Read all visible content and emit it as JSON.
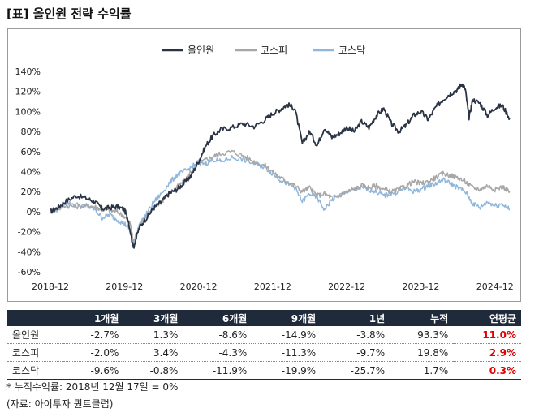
{
  "title": "[표] 올인원 전략 수익률",
  "chart_data": {
    "type": "line",
    "ylim": [
      -60,
      140
    ],
    "yticks": [
      "140%",
      "120%",
      "100%",
      "80%",
      "60%",
      "40%",
      "20%",
      "0%",
      "-20%",
      "-40%",
      "-60%"
    ],
    "xticks": [
      "2018-12",
      "2019-12",
      "2020-12",
      "2021-12",
      "2022-12",
      "2023-12",
      "2024-12"
    ],
    "xlim": [
      0,
      6.2
    ],
    "legend_position": "top-center",
    "series": [
      {
        "name": "올인원",
        "color": "#2b3444",
        "points": [
          [
            0,
            0
          ],
          [
            0.1,
            4
          ],
          [
            0.2,
            10
          ],
          [
            0.35,
            16
          ],
          [
            0.5,
            13
          ],
          [
            0.6,
            10
          ],
          [
            0.7,
            3
          ],
          [
            0.8,
            4
          ],
          [
            0.9,
            5
          ],
          [
            1.0,
            2
          ],
          [
            1.05,
            -8
          ],
          [
            1.12,
            -36
          ],
          [
            1.2,
            -16
          ],
          [
            1.3,
            -6
          ],
          [
            1.4,
            4
          ],
          [
            1.5,
            10
          ],
          [
            1.6,
            18
          ],
          [
            1.7,
            22
          ],
          [
            1.8,
            28
          ],
          [
            1.9,
            36
          ],
          [
            2.0,
            50
          ],
          [
            2.1,
            66
          ],
          [
            2.2,
            76
          ],
          [
            2.3,
            82
          ],
          [
            2.45,
            84
          ],
          [
            2.6,
            88
          ],
          [
            2.75,
            85
          ],
          [
            2.9,
            92
          ],
          [
            3.0,
            98
          ],
          [
            3.1,
            102
          ],
          [
            3.2,
            107
          ],
          [
            3.3,
            103
          ],
          [
            3.4,
            68
          ],
          [
            3.5,
            80
          ],
          [
            3.6,
            66
          ],
          [
            3.7,
            84
          ],
          [
            3.8,
            74
          ],
          [
            3.9,
            78
          ],
          [
            4.0,
            84
          ],
          [
            4.1,
            80
          ],
          [
            4.2,
            90
          ],
          [
            4.3,
            84
          ],
          [
            4.4,
            96
          ],
          [
            4.5,
            103
          ],
          [
            4.6,
            88
          ],
          [
            4.7,
            80
          ],
          [
            4.8,
            86
          ],
          [
            4.9,
            96
          ],
          [
            5.0,
            100
          ],
          [
            5.1,
            92
          ],
          [
            5.2,
            104
          ],
          [
            5.3,
            112
          ],
          [
            5.4,
            118
          ],
          [
            5.5,
            122
          ],
          [
            5.55,
            128
          ],
          [
            5.6,
            122
          ],
          [
            5.65,
            94
          ],
          [
            5.7,
            112
          ],
          [
            5.8,
            108
          ],
          [
            5.9,
            96
          ],
          [
            6.0,
            104
          ],
          [
            6.1,
            106
          ],
          [
            6.2,
            93
          ]
        ]
      },
      {
        "name": "코스피",
        "color": "#a7a7a7",
        "points": [
          [
            0,
            0
          ],
          [
            0.1,
            3
          ],
          [
            0.2,
            6
          ],
          [
            0.35,
            5
          ],
          [
            0.5,
            6
          ],
          [
            0.6,
            5
          ],
          [
            0.7,
            2
          ],
          [
            0.8,
            1
          ],
          [
            0.9,
            0
          ],
          [
            1.0,
            -5
          ],
          [
            1.08,
            -12
          ],
          [
            1.12,
            -30
          ],
          [
            1.2,
            -14
          ],
          [
            1.3,
            -4
          ],
          [
            1.4,
            4
          ],
          [
            1.5,
            10
          ],
          [
            1.6,
            18
          ],
          [
            1.7,
            24
          ],
          [
            1.8,
            30
          ],
          [
            1.9,
            40
          ],
          [
            2.0,
            48
          ],
          [
            2.1,
            52
          ],
          [
            2.2,
            55
          ],
          [
            2.3,
            58
          ],
          [
            2.45,
            60
          ],
          [
            2.6,
            56
          ],
          [
            2.75,
            50
          ],
          [
            2.9,
            46
          ],
          [
            3.0,
            40
          ],
          [
            3.1,
            34
          ],
          [
            3.2,
            30
          ],
          [
            3.3,
            26
          ],
          [
            3.4,
            20
          ],
          [
            3.5,
            24
          ],
          [
            3.6,
            16
          ],
          [
            3.7,
            18
          ],
          [
            3.8,
            14
          ],
          [
            3.9,
            16
          ],
          [
            4.0,
            20
          ],
          [
            4.1,
            22
          ],
          [
            4.2,
            26
          ],
          [
            4.3,
            24
          ],
          [
            4.4,
            26
          ],
          [
            4.5,
            22
          ],
          [
            4.6,
            20
          ],
          [
            4.7,
            22
          ],
          [
            4.8,
            26
          ],
          [
            4.9,
            30
          ],
          [
            5.0,
            28
          ],
          [
            5.1,
            30
          ],
          [
            5.2,
            34
          ],
          [
            5.3,
            38
          ],
          [
            5.4,
            36
          ],
          [
            5.5,
            34
          ],
          [
            5.6,
            30
          ],
          [
            5.7,
            24
          ],
          [
            5.8,
            22
          ],
          [
            5.9,
            26
          ],
          [
            6.0,
            22
          ],
          [
            6.1,
            25
          ],
          [
            6.2,
            20
          ]
        ]
      },
      {
        "name": "코스닥",
        "color": "#8fb7dc",
        "points": [
          [
            0,
            0
          ],
          [
            0.1,
            2
          ],
          [
            0.2,
            9
          ],
          [
            0.35,
            7
          ],
          [
            0.5,
            5
          ],
          [
            0.6,
            2
          ],
          [
            0.7,
            -6
          ],
          [
            0.8,
            -3
          ],
          [
            0.9,
            -8
          ],
          [
            1.0,
            -12
          ],
          [
            1.08,
            -18
          ],
          [
            1.12,
            -33
          ],
          [
            1.2,
            -14
          ],
          [
            1.3,
            -2
          ],
          [
            1.4,
            10
          ],
          [
            1.5,
            18
          ],
          [
            1.6,
            28
          ],
          [
            1.7,
            36
          ],
          [
            1.8,
            40
          ],
          [
            1.9,
            44
          ],
          [
            2.0,
            50
          ],
          [
            2.1,
            48
          ],
          [
            2.2,
            52
          ],
          [
            2.3,
            50
          ],
          [
            2.45,
            54
          ],
          [
            2.6,
            52
          ],
          [
            2.75,
            48
          ],
          [
            2.9,
            44
          ],
          [
            3.0,
            38
          ],
          [
            3.1,
            32
          ],
          [
            3.2,
            28
          ],
          [
            3.3,
            24
          ],
          [
            3.4,
            10
          ],
          [
            3.5,
            18
          ],
          [
            3.6,
            14
          ],
          [
            3.7,
            2
          ],
          [
            3.8,
            12
          ],
          [
            3.9,
            16
          ],
          [
            4.0,
            20
          ],
          [
            4.1,
            22
          ],
          [
            4.2,
            24
          ],
          [
            4.3,
            22
          ],
          [
            4.4,
            20
          ],
          [
            4.5,
            16
          ],
          [
            4.6,
            18
          ],
          [
            4.7,
            20
          ],
          [
            4.8,
            24
          ],
          [
            4.9,
            20
          ],
          [
            5.0,
            22
          ],
          [
            5.1,
            26
          ],
          [
            5.2,
            28
          ],
          [
            5.3,
            32
          ],
          [
            5.4,
            28
          ],
          [
            5.5,
            24
          ],
          [
            5.6,
            20
          ],
          [
            5.7,
            8
          ],
          [
            5.8,
            4
          ],
          [
            5.9,
            10
          ],
          [
            6.0,
            6
          ],
          [
            6.1,
            8
          ],
          [
            6.2,
            2
          ]
        ]
      }
    ]
  },
  "table": {
    "headers": [
      "",
      "1개월",
      "3개월",
      "6개월",
      "9개월",
      "1년",
      "누적",
      "연평균"
    ],
    "rows": [
      [
        "올인원",
        "-2.7%",
        "1.3%",
        "-8.6%",
        "-14.9%",
        "-3.8%",
        "93.3%",
        "11.0%"
      ],
      [
        "코스피",
        "-2.0%",
        "3.4%",
        "-4.3%",
        "-11.3%",
        "-9.7%",
        "19.8%",
        "2.9%"
      ],
      [
        "코스닥",
        "-9.6%",
        "-0.8%",
        "-11.9%",
        "-19.9%",
        "-25.7%",
        "1.7%",
        "0.3%"
      ]
    ]
  },
  "footnote": "* 누적수익률: 2018년 12월 17일 = 0%",
  "source": "(자료: 아이투자 퀀트클럽)"
}
